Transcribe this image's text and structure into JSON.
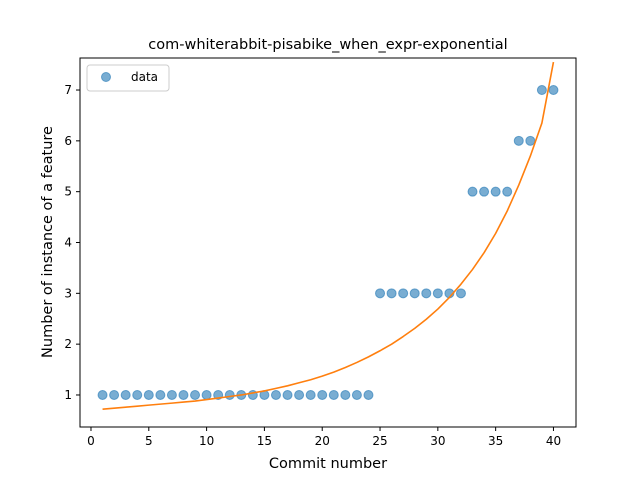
{
  "chart_data": {
    "type": "scatter",
    "title": "com-whiterabbit-pisabike_when_expr-exponential",
    "xlabel": "Commit number",
    "ylabel": "Number of instance of a feature",
    "xlim": [
      -0.95,
      41.95
    ],
    "ylim": [
      0.37,
      7.63
    ],
    "xticks": [
      0,
      5,
      10,
      15,
      20,
      25,
      30,
      35,
      40
    ],
    "yticks": [
      1,
      2,
      3,
      4,
      5,
      6,
      7
    ],
    "grid": false,
    "legend": {
      "position": "top-left",
      "entries": [
        "data"
      ]
    },
    "series": [
      {
        "name": "data",
        "kind": "scatter",
        "color": "#1f77b4",
        "x": [
          1,
          2,
          3,
          4,
          5,
          6,
          7,
          8,
          9,
          10,
          11,
          12,
          13,
          14,
          15,
          16,
          17,
          18,
          19,
          20,
          21,
          22,
          23,
          24,
          25,
          26,
          27,
          28,
          29,
          30,
          31,
          32,
          33,
          34,
          35,
          36,
          37,
          38,
          39,
          40
        ],
        "y": [
          1,
          1,
          1,
          1,
          1,
          1,
          1,
          1,
          1,
          1,
          1,
          1,
          1,
          1,
          1,
          1,
          1,
          1,
          1,
          1,
          1,
          1,
          1,
          1,
          3,
          3,
          3,
          3,
          3,
          3,
          3,
          3,
          5,
          5,
          5,
          5,
          6,
          6,
          7,
          7
        ]
      },
      {
        "kind": "line",
        "color": "#ff7f0e",
        "x": [
          1,
          2,
          3,
          4,
          5,
          6,
          7,
          8,
          9,
          10,
          11,
          12,
          13,
          14,
          15,
          16,
          17,
          18,
          19,
          20,
          21,
          22,
          23,
          24,
          25,
          26,
          27,
          28,
          29,
          30,
          31,
          32,
          33,
          34,
          35,
          36,
          37,
          38,
          39,
          40
        ],
        "y": [
          0.72,
          0.74,
          0.76,
          0.78,
          0.8,
          0.82,
          0.84,
          0.86,
          0.88,
          0.91,
          0.94,
          0.97,
          1.0,
          1.04,
          1.08,
          1.13,
          1.18,
          1.24,
          1.3,
          1.37,
          1.45,
          1.54,
          1.64,
          1.75,
          1.87,
          2.0,
          2.15,
          2.31,
          2.49,
          2.69,
          2.92,
          3.18,
          3.47,
          3.8,
          4.18,
          4.62,
          5.13,
          5.7,
          6.35,
          7.55
        ]
      }
    ]
  }
}
